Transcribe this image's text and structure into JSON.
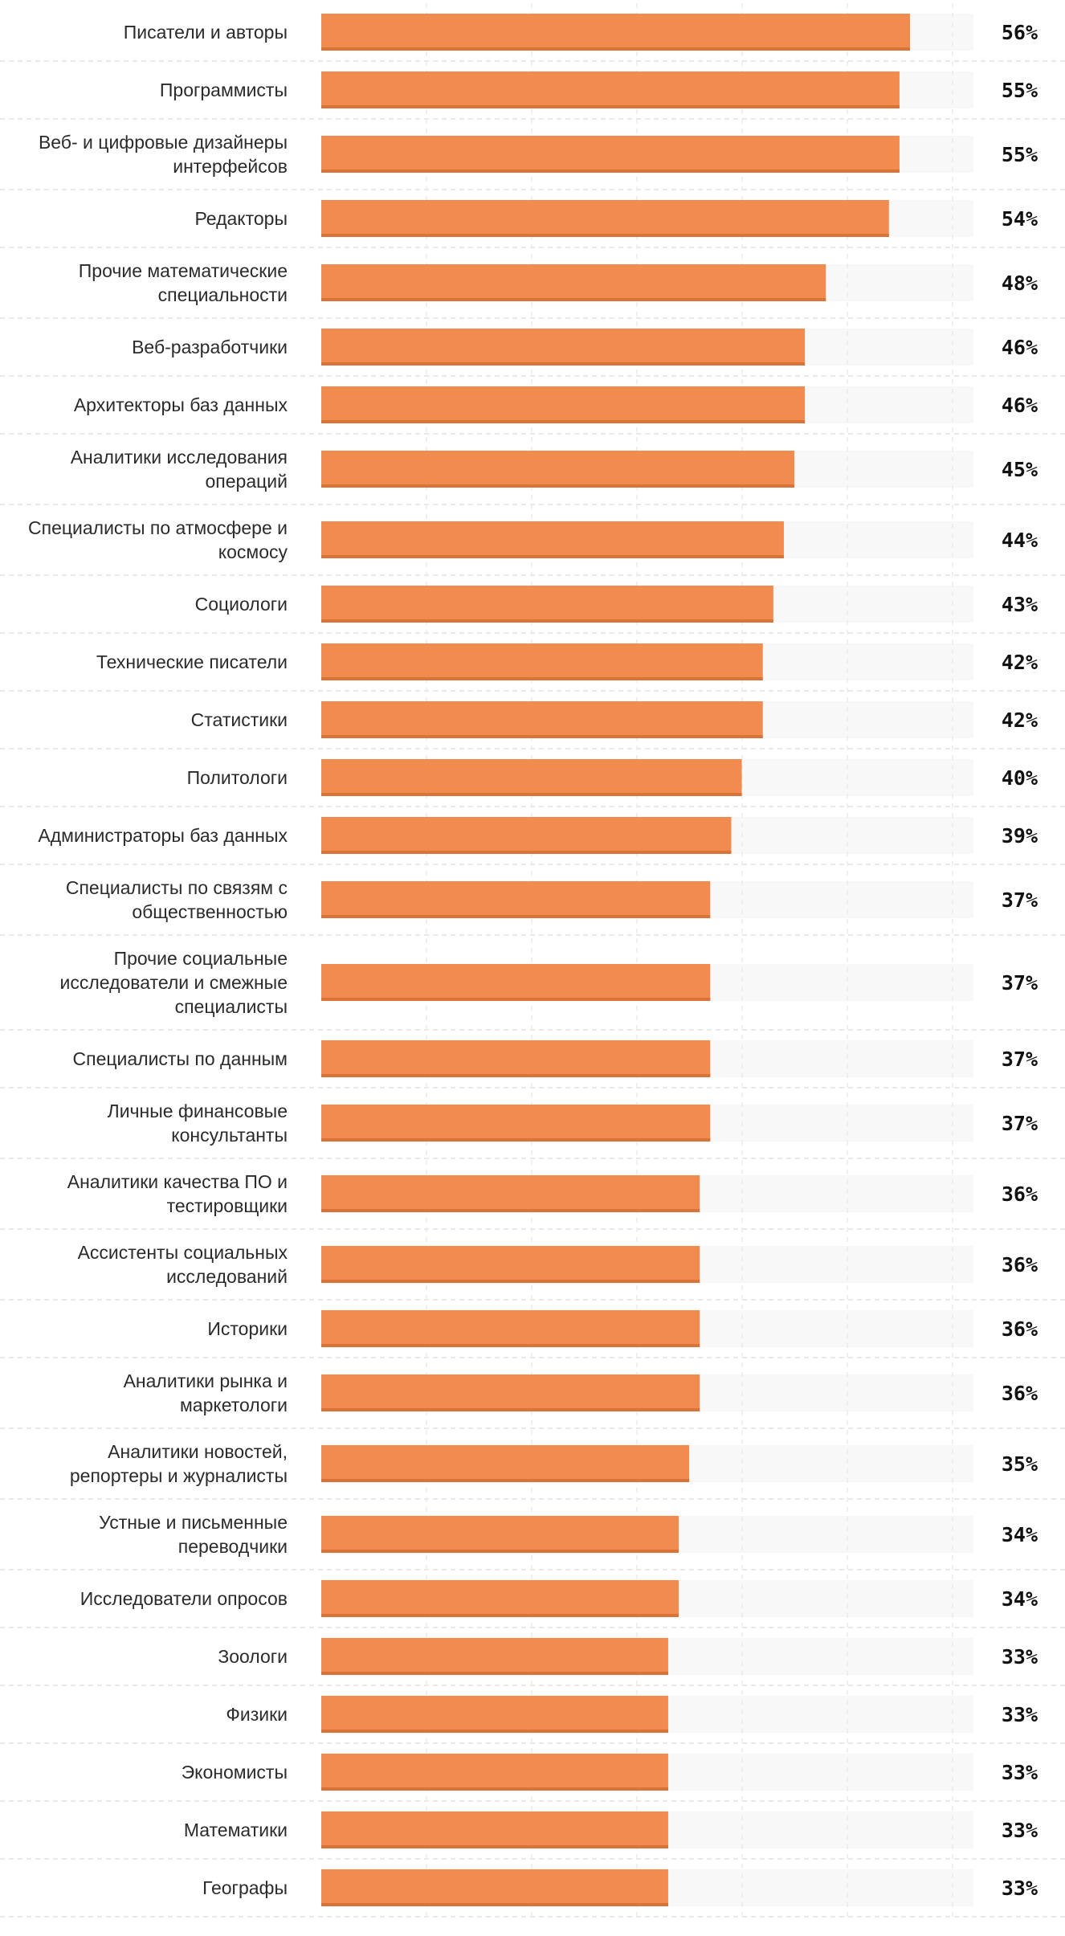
{
  "chart_data": {
    "type": "bar",
    "orientation": "horizontal",
    "value_suffix": "%",
    "xlim": [
      0,
      62
    ],
    "grid": true,
    "colors": {
      "bar": "#f28b4f",
      "bar_shadow": "#d9733a",
      "track": "#f8f8f8",
      "gridline": "#ebebeb",
      "row_divider": "#e2e2e2"
    },
    "categories": [
      [
        "Писатели и авторы"
      ],
      [
        "Программисты"
      ],
      [
        "Веб- и цифровые дизайнеры",
        "интерфейсов"
      ],
      [
        "Редакторы"
      ],
      [
        "Прочие математические",
        "специальности"
      ],
      [
        "Веб-разработчики"
      ],
      [
        "Архитекторы баз данных"
      ],
      [
        "Аналитики исследования",
        "операций"
      ],
      [
        "Специалисты по атмосфере и",
        "космосу"
      ],
      [
        "Социологи"
      ],
      [
        "Технические писатели"
      ],
      [
        "Статистики"
      ],
      [
        "Политологи"
      ],
      [
        "Администраторы баз данных"
      ],
      [
        "Специалисты по связям с",
        "общественностью"
      ],
      [
        "Прочие социальные",
        "исследователи и смежные",
        "специалисты"
      ],
      [
        "Специалисты по данным"
      ],
      [
        "Личные финансовые",
        "консультанты"
      ],
      [
        "Аналитики качества ПО и",
        "тестировщики"
      ],
      [
        "Ассистенты социальных",
        "исследований"
      ],
      [
        "Историки"
      ],
      [
        "Аналитики рынка и",
        "маркетологи"
      ],
      [
        "Аналитики новостей,",
        "репортеры и журналисты"
      ],
      [
        "Устные и письменные",
        "переводчики"
      ],
      [
        "Исследователи опросов"
      ],
      [
        "Зоологи"
      ],
      [
        "Физики"
      ],
      [
        "Экономисты"
      ],
      [
        "Математики"
      ],
      [
        "Географы"
      ]
    ],
    "values": [
      56,
      55,
      55,
      54,
      48,
      46,
      46,
      45,
      44,
      43,
      42,
      42,
      40,
      39,
      37,
      37,
      37,
      37,
      36,
      36,
      36,
      36,
      35,
      34,
      34,
      33,
      33,
      33,
      33,
      33
    ]
  }
}
